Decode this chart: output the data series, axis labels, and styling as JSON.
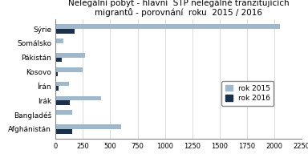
{
  "title": "Nelegální pobyt - hlavní  STP nelegálně tranzitujících\nmigrantů - porovnání  roku  2015 / 2016",
  "categories": [
    "Sýrie",
    "Somálsko",
    "Pákistán",
    "Kosovo",
    "Írán",
    "Irák",
    "Bangladéš",
    "Afghánistán"
  ],
  "values_2015": [
    2050,
    75,
    270,
    250,
    125,
    420,
    150,
    600
  ],
  "values_2016": [
    175,
    5,
    55,
    18,
    28,
    130,
    5,
    155
  ],
  "color_2015": "#a0b8cc",
  "color_2016": "#1a2f4a",
  "legend_2015": "rok 2015",
  "legend_2016": "rok 2016",
  "xlim": [
    0,
    2250
  ],
  "xticks": [
    0,
    250,
    500,
    750,
    1000,
    1250,
    1500,
    1750,
    2000,
    2250
  ],
  "background_color": "#ffffff",
  "title_fontsize": 7.5,
  "tick_fontsize": 6,
  "label_fontsize": 6.5,
  "legend_fontsize": 6.5
}
